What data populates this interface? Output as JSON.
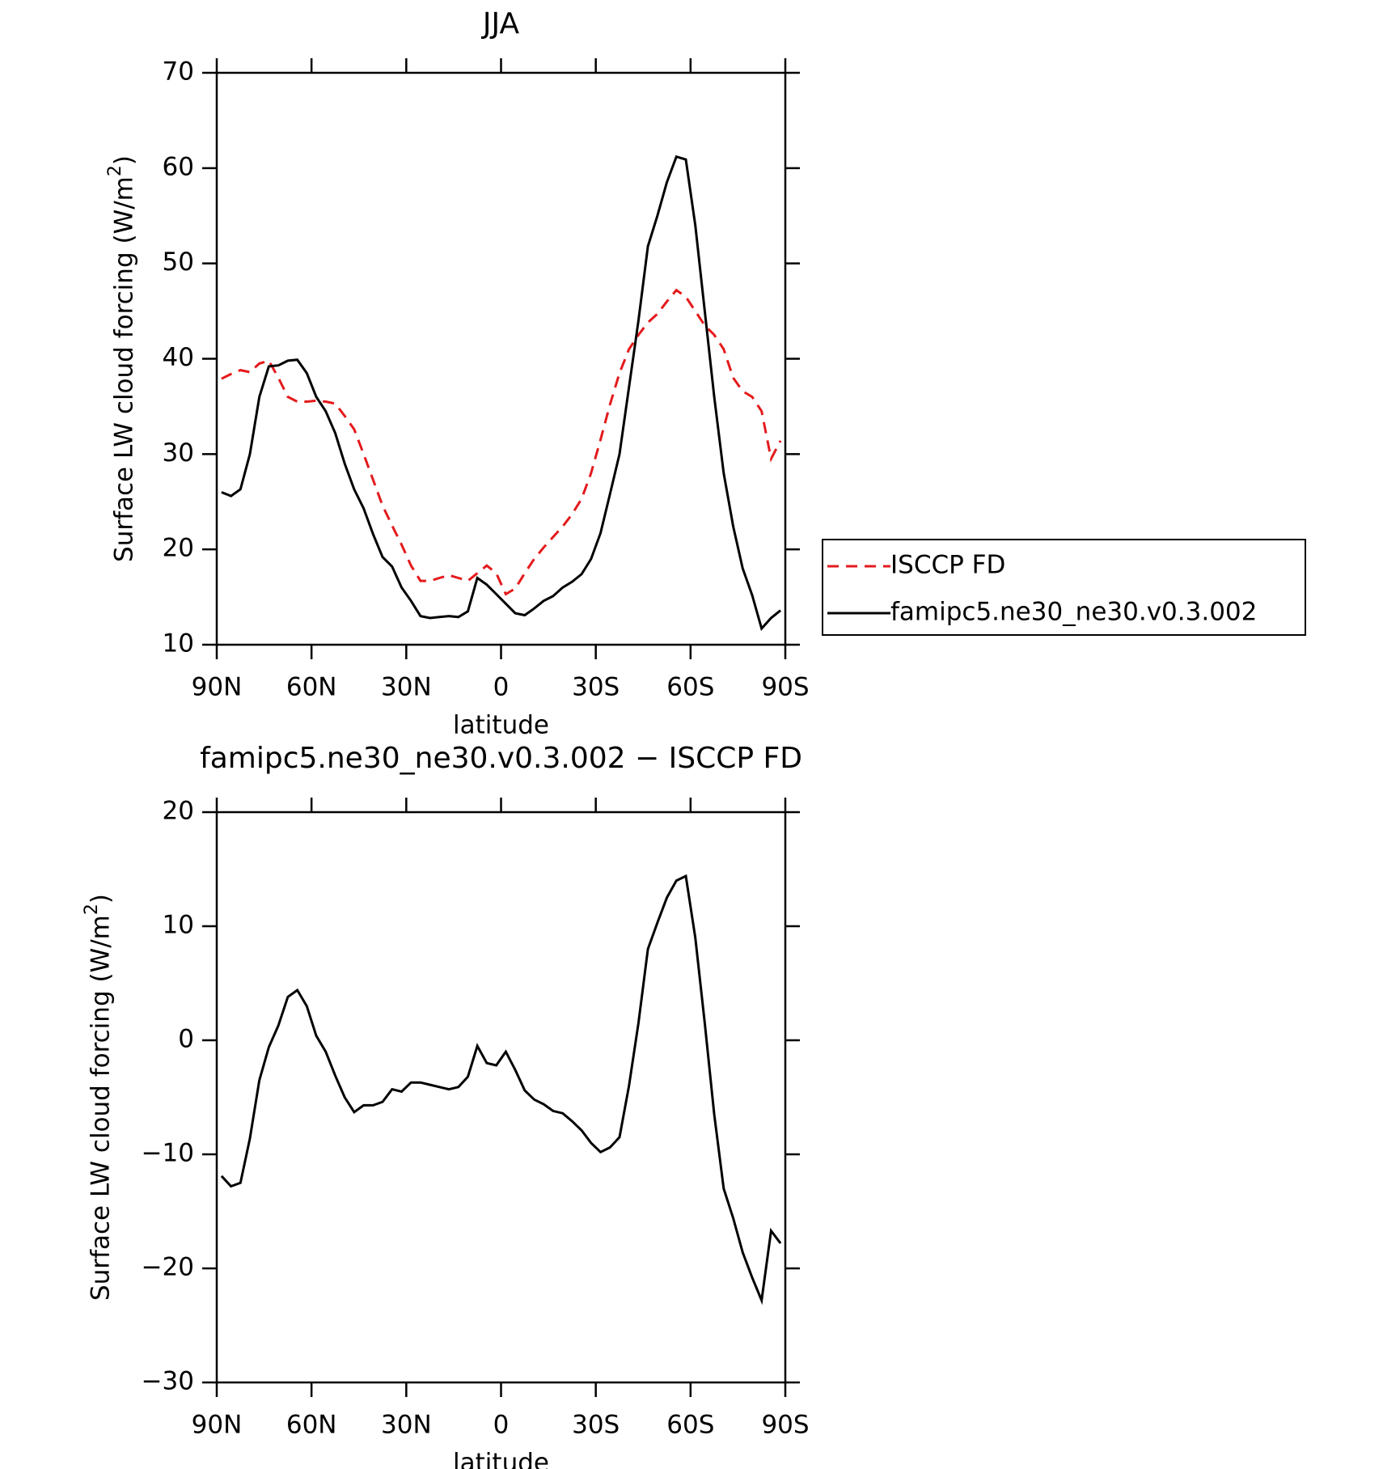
{
  "chart_data": [
    {
      "type": "line",
      "title": "JJA",
      "x_label": "latitude",
      "y_label": "Surface LW cloud forcing (W/m²)",
      "x": [
        88.5,
        85.5,
        82.5,
        79.5,
        76.5,
        73.5,
        70.5,
        67.5,
        64.5,
        61.5,
        58.5,
        55.5,
        52.5,
        49.5,
        46.5,
        43.5,
        40.5,
        37.5,
        34.5,
        31.5,
        28.5,
        25.5,
        22.5,
        19.5,
        16.5,
        13.5,
        10.5,
        7.5,
        4.5,
        1.5,
        -1.5,
        -4.5,
        -7.5,
        -10.5,
        -13.5,
        -16.5,
        -19.5,
        -22.5,
        -25.5,
        -28.5,
        -31.5,
        -34.5,
        -37.5,
        -40.5,
        -43.5,
        -46.5,
        -49.5,
        -52.5,
        -55.5,
        -58.5,
        -61.5,
        -64.5,
        -67.5,
        -70.5,
        -73.5,
        -76.5,
        -79.5,
        -82.5,
        -85.5,
        -88.5
      ],
      "series": [
        {
          "name": "ISCCP FD",
          "color": "#e41a1c",
          "dash": true,
          "values": [
            37.9,
            38.4,
            38.8,
            38.6,
            39.5,
            39.8,
            38,
            36,
            35.5,
            35.5,
            35.6,
            35.5,
            35.3,
            34,
            32.6,
            30,
            27.3,
            24.6,
            22.5,
            20.5,
            18.3,
            16.7,
            16.7,
            17,
            17.3,
            17,
            16.7,
            17.5,
            18.3,
            17.5,
            15.3,
            15.9,
            17.5,
            19,
            20.2,
            21.3,
            22.4,
            23.7,
            25.3,
            28,
            31.5,
            35.2,
            38.5,
            41,
            42.5,
            43.8,
            44.7,
            46,
            47.2,
            46.5,
            45,
            43.5,
            42.5,
            41,
            38,
            36.6,
            36,
            34.5,
            29.5,
            31.4
          ]
        },
        {
          "name": "famipc5.ne30_ne30.v0.3.002",
          "color": "#000000",
          "dash": false,
          "values": [
            26,
            25.6,
            26.3,
            30,
            36,
            39.2,
            39.3,
            39.8,
            39.9,
            38.5,
            36,
            34.5,
            32.2,
            29,
            26.3,
            24.3,
            21.6,
            19.2,
            18.2,
            16,
            14.6,
            13,
            12.8,
            12.9,
            13,
            12.9,
            13.5,
            17,
            16.3,
            15.3,
            14.3,
            13.3,
            13.1,
            13.8,
            14.6,
            15.1,
            16,
            16.6,
            17.4,
            19,
            21.7,
            25.8,
            30,
            37,
            44,
            51.8,
            55,
            58.5,
            61.2,
            60.9,
            54,
            45,
            36,
            28,
            22.4,
            18,
            15.2,
            11.7,
            12.8,
            13.6
          ]
        }
      ],
      "xlim": [
        90,
        -90
      ],
      "xticks": [
        {
          "value": 90,
          "label": "90N"
        },
        {
          "value": 60,
          "label": "60N"
        },
        {
          "value": 30,
          "label": "30N"
        },
        0,
        {
          "value": -30,
          "label": "30S"
        },
        {
          "value": -60,
          "label": "60S"
        },
        {
          "value": -90,
          "label": "90S"
        }
      ],
      "ylim": [
        10,
        70
      ],
      "yticks": [
        10,
        20,
        30,
        40,
        50,
        60,
        70
      ],
      "legend": "right"
    },
    {
      "type": "line",
      "title": "famipc5.ne30_ne30.v0.3.002 − ISCCP FD",
      "x_label": "latitude",
      "y_label": "Surface LW cloud forcing (W/m²)",
      "x": [
        88.5,
        85.5,
        82.5,
        79.5,
        76.5,
        73.5,
        70.5,
        67.5,
        64.5,
        61.5,
        58.5,
        55.5,
        52.5,
        49.5,
        46.5,
        43.5,
        40.5,
        37.5,
        34.5,
        31.5,
        28.5,
        25.5,
        22.5,
        19.5,
        16.5,
        13.5,
        10.5,
        7.5,
        4.5,
        1.5,
        -1.5,
        -4.5,
        -7.5,
        -10.5,
        -13.5,
        -16.5,
        -19.5,
        -22.5,
        -25.5,
        -28.5,
        -31.5,
        -34.5,
        -37.5,
        -40.5,
        -43.5,
        -46.5,
        -49.5,
        -52.5,
        -55.5,
        -58.5,
        -61.5,
        -64.5,
        -67.5,
        -70.5,
        -73.5,
        -76.5,
        -79.5,
        -82.5,
        -85.5,
        -88.5
      ],
      "values": [
        -11.9,
        -12.8,
        -12.5,
        -8.6,
        -3.5,
        -0.6,
        1.3,
        3.8,
        4.4,
        3,
        0.4,
        -1,
        -3.1,
        -5,
        -6.3,
        -5.7,
        -5.7,
        -5.4,
        -4.3,
        -4.5,
        -3.7,
        -3.7,
        -3.9,
        -4.1,
        -4.3,
        -4.1,
        -3.2,
        -0.5,
        -2,
        -2.2,
        -1,
        -2.6,
        -4.4,
        -5.2,
        -5.6,
        -6.2,
        -6.4,
        -7.1,
        -7.9,
        -9,
        -9.8,
        -9.4,
        -8.5,
        -4,
        1.5,
        8,
        10.3,
        12.5,
        14,
        14.4,
        9,
        1.5,
        -6.5,
        -13,
        -15.6,
        -18.6,
        -20.8,
        -22.8,
        -16.7,
        -17.8
      ],
      "color": "#000000",
      "xlim": [
        90,
        -90
      ],
      "xticks": [
        {
          "value": 90,
          "label": "90N"
        },
        {
          "value": 60,
          "label": "60N"
        },
        {
          "value": 30,
          "label": "30N"
        },
        0,
        {
          "value": -30,
          "label": "30S"
        },
        {
          "value": -60,
          "label": "60S"
        },
        {
          "value": -90,
          "label": "90S"
        }
      ],
      "ylim": [
        -30,
        20
      ],
      "yticks": [
        {
          "value": -30,
          "label": "−30"
        },
        {
          "value": -20,
          "label": "−20"
        },
        {
          "value": -10,
          "label": "−10"
        },
        0,
        10,
        20
      ]
    }
  ]
}
